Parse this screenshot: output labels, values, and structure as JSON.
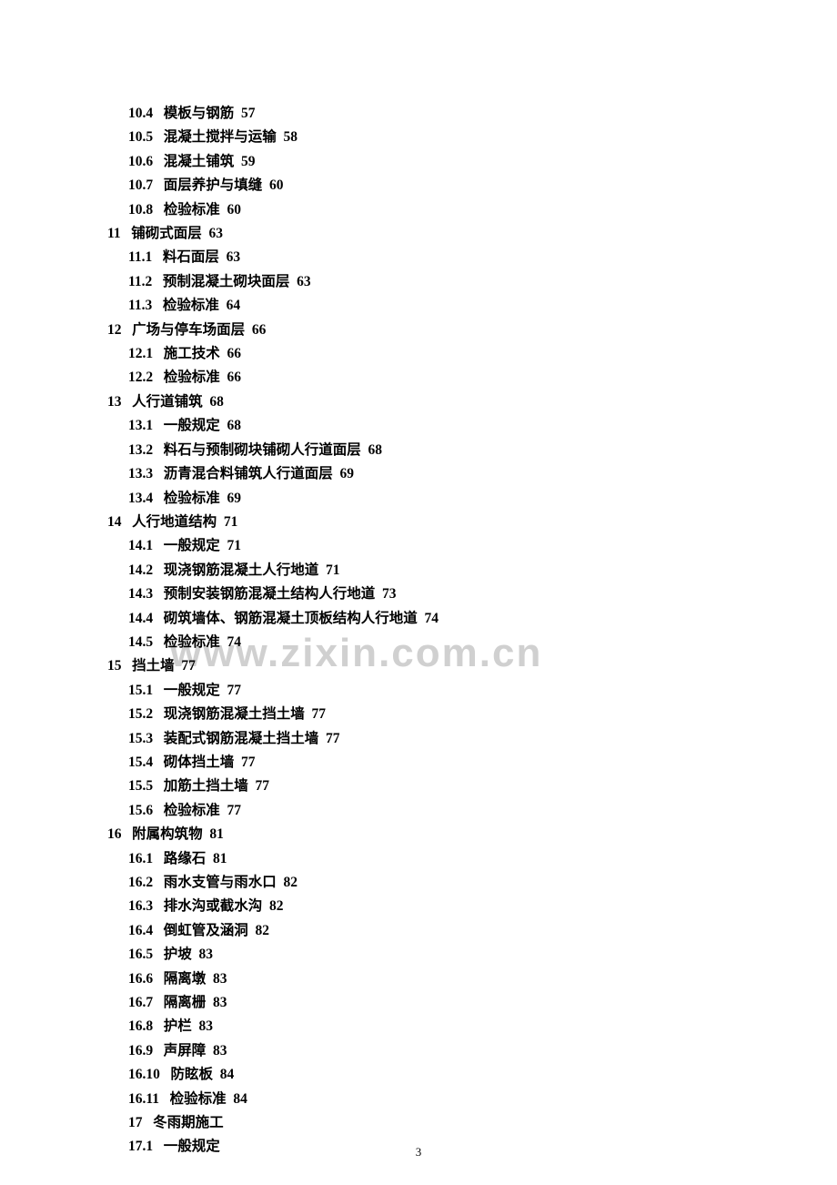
{
  "watermark": "www.zixin.com.cn",
  "page_number": "3",
  "toc": [
    {
      "indent": 2,
      "num": "10.4",
      "title": "模板与钢筋",
      "page": "57"
    },
    {
      "indent": 2,
      "num": "10.5",
      "title": "混凝土搅拌与运输",
      "page": "58"
    },
    {
      "indent": 2,
      "num": "10.6",
      "title": "混凝土铺筑",
      "page": "59"
    },
    {
      "indent": 2,
      "num": "10.7",
      "title": "面层养护与填缝",
      "page": "60"
    },
    {
      "indent": 2,
      "num": "10.8",
      "title": "检验标准",
      "page": "60"
    },
    {
      "indent": 1,
      "num": "11",
      "title": "铺砌式面层",
      "page": "63"
    },
    {
      "indent": 2,
      "num": "11.1",
      "title": "料石面层",
      "page": "63"
    },
    {
      "indent": 2,
      "num": "11.2",
      "title": "预制混凝土砌块面层",
      "page": "63"
    },
    {
      "indent": 2,
      "num": "11.3",
      "title": "检验标准",
      "page": "64"
    },
    {
      "indent": 1,
      "num": "12",
      "title": "广场与停车场面层",
      "page": "66"
    },
    {
      "indent": 2,
      "num": "12.1",
      "title": "施工技术",
      "page": "66"
    },
    {
      "indent": 2,
      "num": "12.2",
      "title": "检验标准",
      "page": "66"
    },
    {
      "indent": 1,
      "num": "13",
      "title": "人行道铺筑",
      "page": "68"
    },
    {
      "indent": 2,
      "num": "13.1",
      "title": "一般规定",
      "page": "68"
    },
    {
      "indent": 2,
      "num": "13.2",
      "title": "料石与预制砌块铺砌人行道面层",
      "page": "68"
    },
    {
      "indent": 2,
      "num": "13.3",
      "title": "沥青混合料铺筑人行道面层",
      "page": "69"
    },
    {
      "indent": 2,
      "num": "13.4",
      "title": "检验标准",
      "page": "69"
    },
    {
      "indent": 1,
      "num": "14",
      "title": "人行地道结构",
      "page": "71"
    },
    {
      "indent": 2,
      "num": "14.1",
      "title": "一般规定",
      "page": "71"
    },
    {
      "indent": 2,
      "num": "14.2",
      "title": "现浇钢筋混凝土人行地道",
      "page": "71"
    },
    {
      "indent": 2,
      "num": "14.3",
      "title": "预制安装钢筋混凝土结构人行地道",
      "page": "73"
    },
    {
      "indent": 2,
      "num": "14.4",
      "title": "砌筑墙体、钢筋混凝土顶板结构人行地道",
      "page": "74"
    },
    {
      "indent": 2,
      "num": "14.5",
      "title": "检验标准",
      "page": "74"
    },
    {
      "indent": 1,
      "num": "15",
      "title": "挡土墙",
      "page": "77"
    },
    {
      "indent": 2,
      "num": "15.1",
      "title": "一般规定",
      "page": "77"
    },
    {
      "indent": 2,
      "num": "15.2",
      "title": "现浇钢筋混凝土挡土墙",
      "page": "77"
    },
    {
      "indent": 2,
      "num": "15.3",
      "title": "装配式钢筋混凝土挡土墙",
      "page": "77"
    },
    {
      "indent": 2,
      "num": "15.4",
      "title": "砌体挡土墙",
      "page": "77"
    },
    {
      "indent": 2,
      "num": "15.5",
      "title": "加筋土挡土墙",
      "page": "77"
    },
    {
      "indent": 2,
      "num": "15.6",
      "title": "检验标准",
      "page": "77"
    },
    {
      "indent": 1,
      "num": "16",
      "title": "附属构筑物",
      "page": "81"
    },
    {
      "indent": 2,
      "num": "16.1",
      "title": "路缘石",
      "page": "81"
    },
    {
      "indent": 2,
      "num": "16.2",
      "title": "雨水支管与雨水口",
      "page": "82"
    },
    {
      "indent": 2,
      "num": "16.3",
      "title": "排水沟或截水沟",
      "page": "82"
    },
    {
      "indent": 2,
      "num": "16.4",
      "title": "倒虹管及涵洞",
      "page": "82"
    },
    {
      "indent": 2,
      "num": "16.5",
      "title": "护坡",
      "page": "83"
    },
    {
      "indent": 2,
      "num": "16.6",
      "title": "隔离墩",
      "page": "83"
    },
    {
      "indent": 2,
      "num": "16.7",
      "title": "隔离栅",
      "page": "83"
    },
    {
      "indent": 2,
      "num": "16.8",
      "title": "护栏",
      "page": "83"
    },
    {
      "indent": 2,
      "num": "16.9",
      "title": "声屏障",
      "page": "83"
    },
    {
      "indent": 2,
      "num": "16.10",
      "title": "防眩板",
      "page": "84"
    },
    {
      "indent": 2,
      "num": "16.11",
      "title": "检验标准",
      "page": "84"
    },
    {
      "indent": 3,
      "num": "17",
      "title": "冬雨期施工",
      "page": ""
    },
    {
      "indent": 3,
      "num": "17.1",
      "title": "一般规定",
      "page": ""
    }
  ]
}
